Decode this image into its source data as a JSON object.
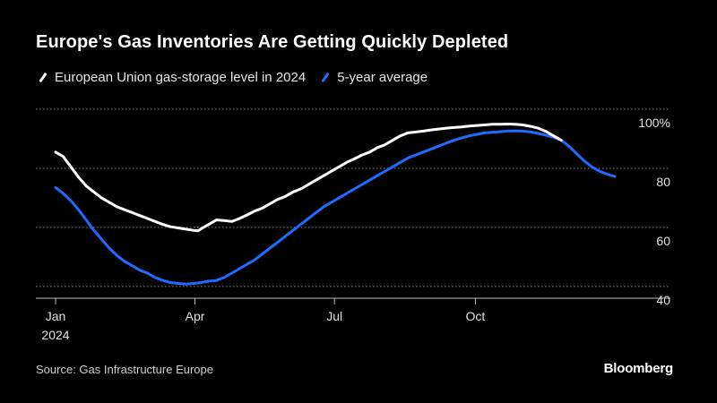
{
  "header": {
    "title": "Europe's Gas Inventories Are Getting Quickly Depleted"
  },
  "legend": {
    "items": [
      {
        "label": "European Union gas-storage level in 2024",
        "color": "#ffffff"
      },
      {
        "label": "5-year average",
        "color": "#1f6bff"
      }
    ]
  },
  "footer": {
    "source": "Source: Gas Infrastructure Europe",
    "brand": "Bloomberg"
  },
  "chart_data": {
    "type": "line",
    "xlim": [
      0,
      365
    ],
    "ylim": [
      36,
      100
    ],
    "y_ticks": [
      {
        "value": 40,
        "label": "40"
      },
      {
        "value": 60,
        "label": "60"
      },
      {
        "value": 80,
        "label": "80"
      },
      {
        "value": 100,
        "label": "100%"
      }
    ],
    "x_ticks": [
      {
        "value": 0,
        "label": "Jan",
        "sublabel": "2024"
      },
      {
        "value": 91,
        "label": "Apr",
        "sublabel": ""
      },
      {
        "value": 182,
        "label": "Jul",
        "sublabel": ""
      },
      {
        "value": 274,
        "label": "Oct",
        "sublabel": ""
      }
    ],
    "grid": "horizontal-dotted",
    "series": [
      {
        "name": "European Union gas-storage level in 2024",
        "color": "#ffffff",
        "x": [
          0,
          5,
          10,
          15,
          20,
          25,
          30,
          35,
          40,
          45,
          50,
          55,
          60,
          65,
          70,
          75,
          80,
          85,
          90,
          93,
          96,
          100,
          105,
          110,
          115,
          120,
          125,
          130,
          135,
          140,
          145,
          150,
          155,
          160,
          165,
          170,
          175,
          180,
          185,
          190,
          195,
          200,
          205,
          210,
          215,
          220,
          225,
          230,
          235,
          240,
          245,
          250,
          255,
          260,
          265,
          270,
          275,
          280,
          285,
          290,
          295,
          300,
          305,
          310,
          315,
          320,
          325,
          330
        ],
        "y": [
          85.5,
          84,
          80.5,
          77,
          74,
          72,
          70,
          68.5,
          67,
          66,
          65,
          64,
          63,
          62,
          61,
          60.2,
          59.8,
          59.4,
          59,
          58.8,
          59.8,
          61,
          62.5,
          62.3,
          62,
          63,
          64.2,
          65.5,
          66.5,
          68,
          69.5,
          70.5,
          72,
          73,
          74.5,
          76,
          77.5,
          79,
          80.5,
          82,
          83.2,
          84.5,
          85.5,
          87,
          88,
          89.5,
          91,
          92,
          92.3,
          92.6,
          93,
          93.3,
          93.6,
          93.8,
          94,
          94.3,
          94.5,
          94.7,
          94.9,
          94.9,
          95,
          94.9,
          94.7,
          94.2,
          93.6,
          92.5,
          91,
          89.5
        ]
      },
      {
        "name": "5-year average",
        "color": "#1f6bff",
        "x": [
          0,
          5,
          10,
          15,
          20,
          25,
          30,
          35,
          40,
          45,
          50,
          55,
          60,
          65,
          70,
          75,
          80,
          85,
          90,
          95,
          100,
          105,
          110,
          115,
          120,
          125,
          130,
          135,
          140,
          145,
          150,
          155,
          160,
          165,
          170,
          175,
          180,
          185,
          190,
          195,
          200,
          205,
          210,
          215,
          220,
          225,
          230,
          235,
          240,
          245,
          250,
          255,
          260,
          265,
          270,
          275,
          280,
          285,
          290,
          295,
          300,
          305,
          310,
          315,
          320,
          325,
          330,
          335,
          340,
          345,
          350,
          355,
          360,
          365
        ],
        "y": [
          73.5,
          71.5,
          69,
          66,
          62.5,
          59,
          56,
          53,
          50.5,
          48.5,
          47,
          45.5,
          44.5,
          43,
          42,
          41.3,
          41,
          40.8,
          41,
          41.3,
          41.8,
          42,
          43,
          44.5,
          46,
          47.5,
          49,
          51,
          53,
          55,
          57,
          59,
          61,
          63,
          65,
          67,
          68.5,
          70,
          71.5,
          73,
          74.5,
          76,
          77.5,
          79,
          80.5,
          82,
          83.5,
          84.5,
          85.5,
          86.5,
          87.5,
          88.5,
          89.5,
          90.3,
          91,
          91.5,
          92,
          92.2,
          92.4,
          92.6,
          92.7,
          92.6,
          92.3,
          91.8,
          91.2,
          90.5,
          89.5,
          87.5,
          85,
          82.5,
          80.5,
          79,
          78,
          77.2
        ]
      }
    ]
  }
}
